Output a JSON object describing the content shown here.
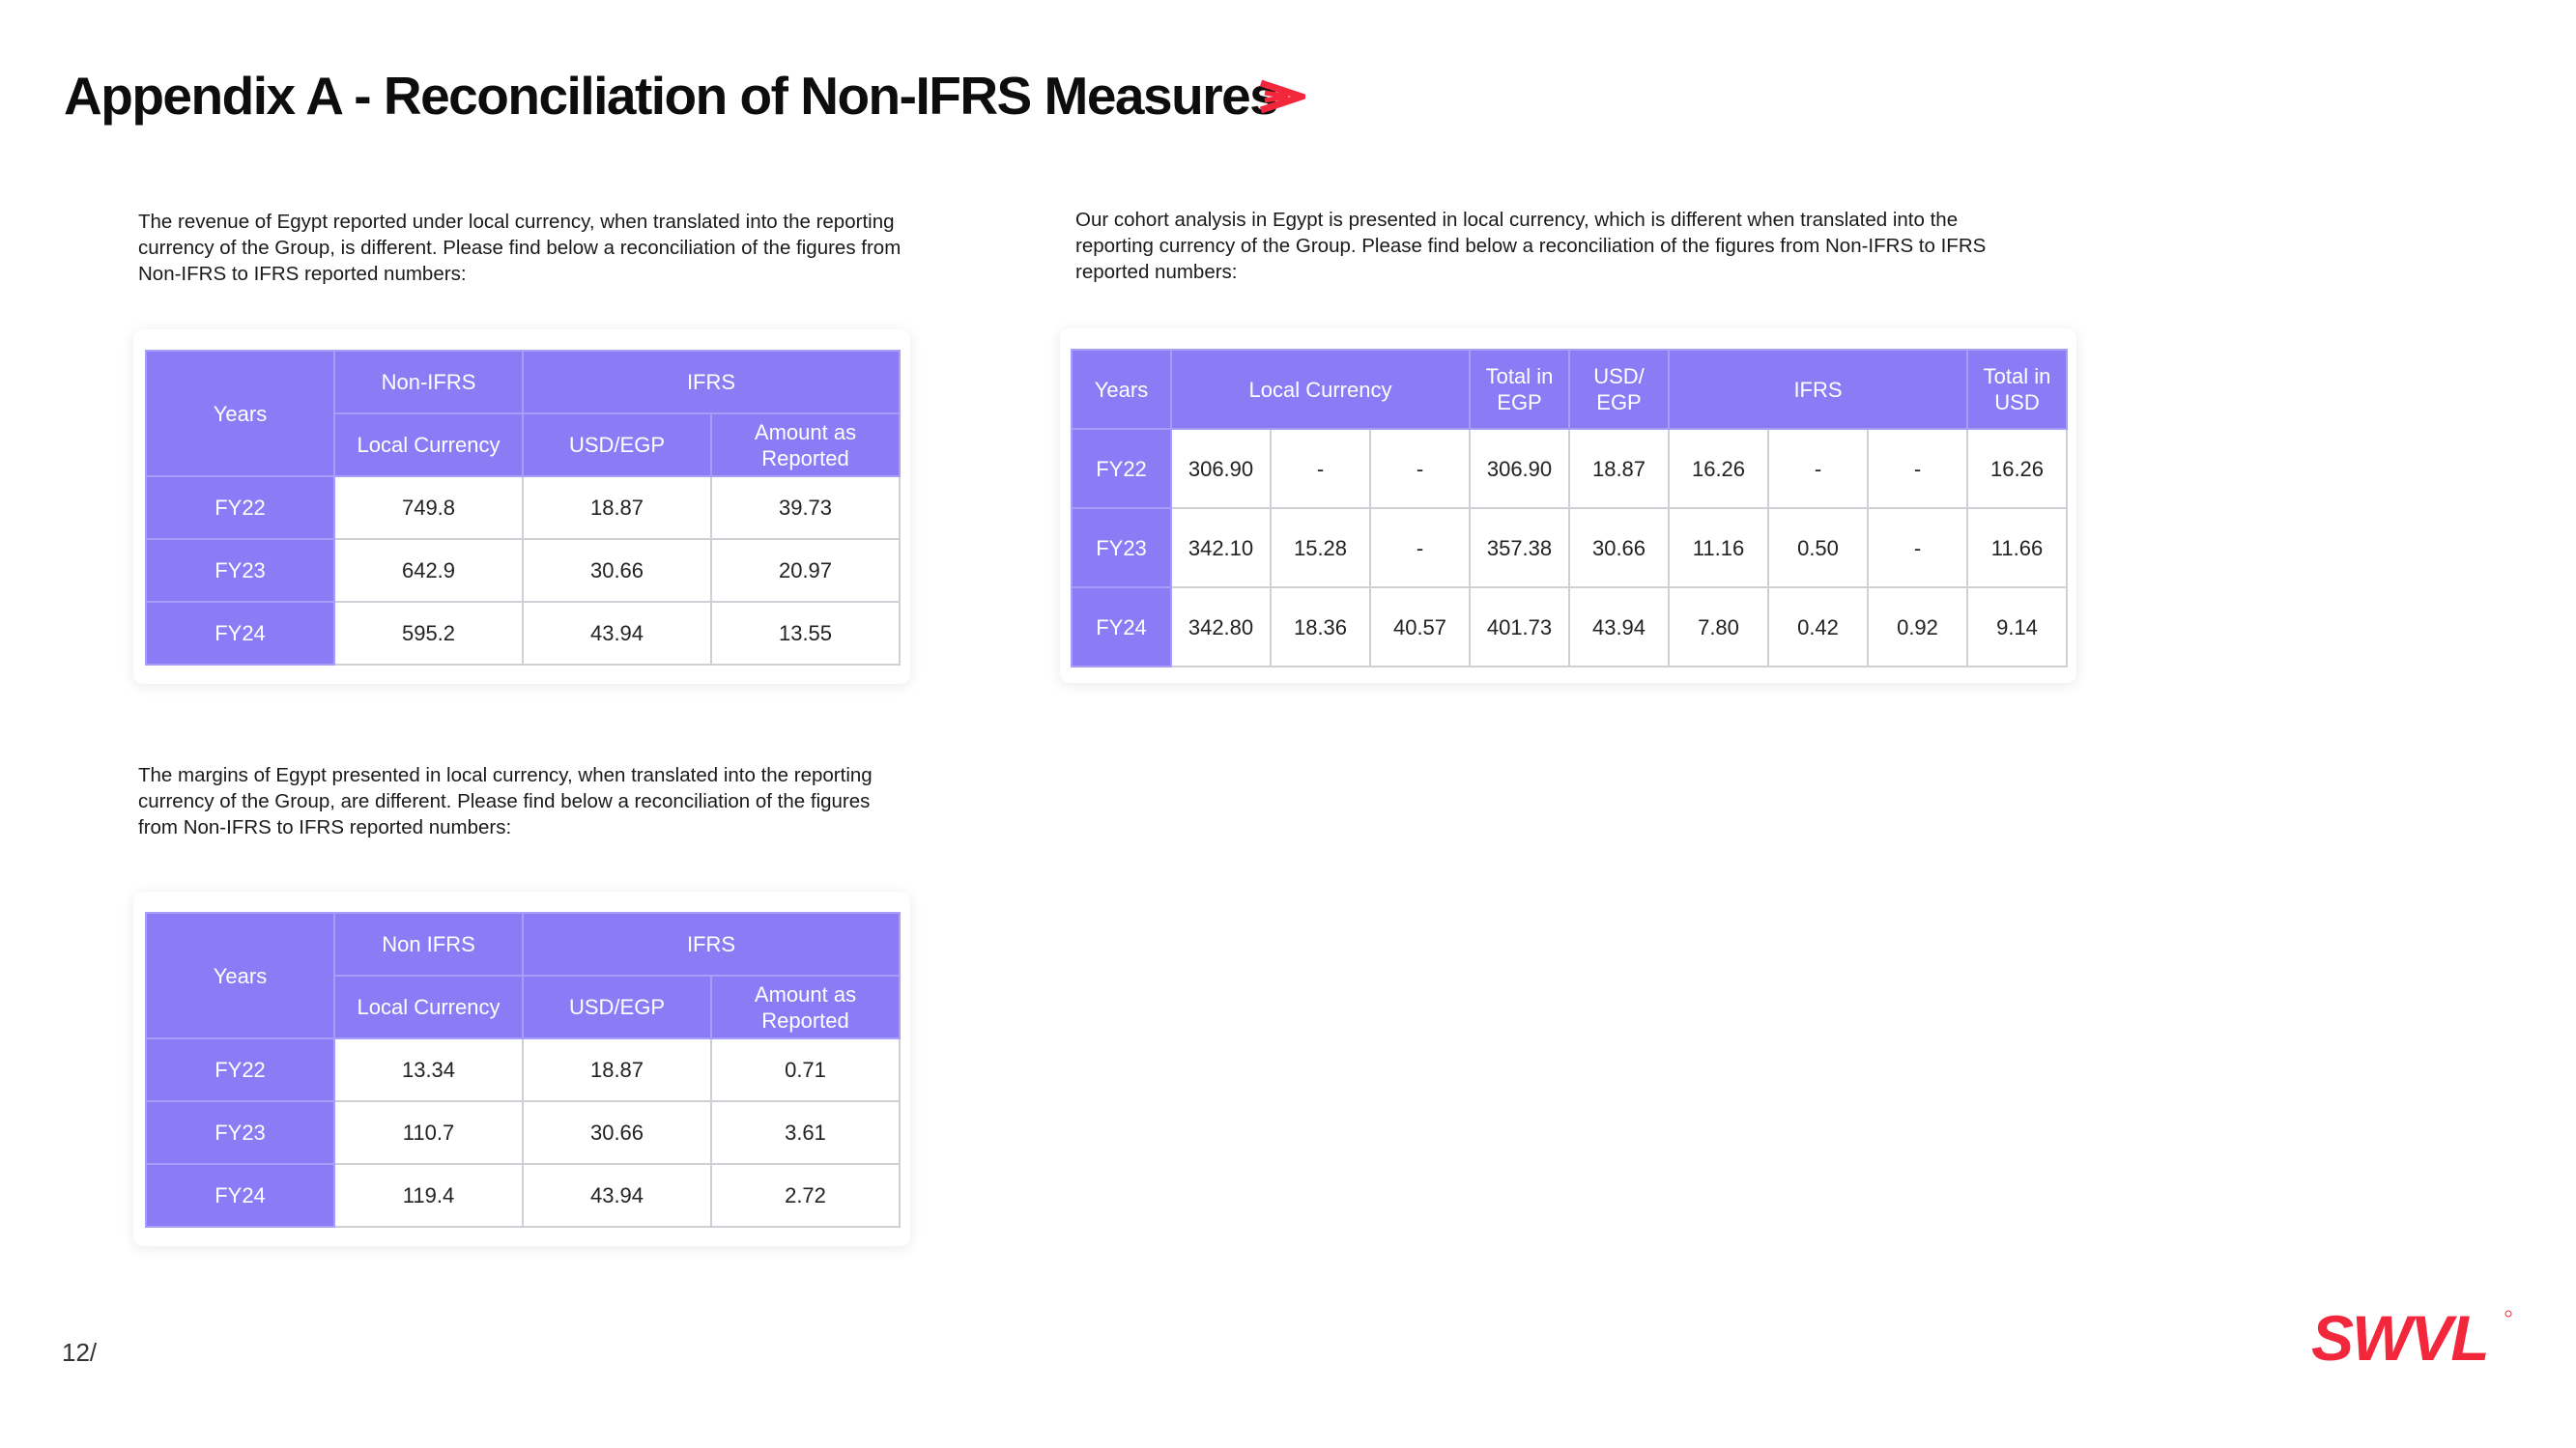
{
  "title": "Appendix A - Reconciliation of Non-IFRS Measures",
  "colors": {
    "accent": "#8B7CF6",
    "brand_red": "#F2273C"
  },
  "icons": {
    "title_icon": "double-chevron-right-icon",
    "logo": "swvl-logo"
  },
  "page_number": "12",
  "logo_text": "SWVL",
  "revenue": {
    "paragraph": "The revenue of Egypt reported under local currency, when translated into the reporting currency of the Group, is different. Please find below a reconciliation of the figures from Non-IFRS to IFRS reported numbers:",
    "headers": {
      "years": "Years",
      "non_ifrs": "Non-IFRS",
      "ifrs": "IFRS",
      "local_currency": "Local Currency",
      "usd_egp": "USD/EGP",
      "amount_reported": "Amount as Reported"
    },
    "rows": [
      {
        "year": "FY22",
        "local": "749.8",
        "rate": "18.87",
        "amount": "39.73"
      },
      {
        "year": "FY23",
        "local": "642.9",
        "rate": "30.66",
        "amount": "20.97"
      },
      {
        "year": "FY24",
        "local": "595.2",
        "rate": "43.94",
        "amount": "13.55"
      }
    ]
  },
  "margins": {
    "paragraph": "The margins of Egypt presented in local currency, when translated into the reporting currency of the Group, are different. Please find below a reconciliation of the figures from Non-IFRS to IFRS reported numbers:",
    "headers": {
      "years": "Years",
      "non_ifrs": "Non IFRS",
      "ifrs": "IFRS",
      "local_currency": "Local Currency",
      "usd_egp": "USD/EGP",
      "amount_reported": "Amount as Reported"
    },
    "rows": [
      {
        "year": "FY22",
        "local": "13.34",
        "rate": "18.87",
        "amount": "0.71"
      },
      {
        "year": "FY23",
        "local": "110.7",
        "rate": "30.66",
        "amount": "3.61"
      },
      {
        "year": "FY24",
        "local": "119.4",
        "rate": "43.94",
        "amount": "2.72"
      }
    ]
  },
  "cohort": {
    "paragraph": "Our cohort analysis in Egypt is presented in local currency, which is different when translated into the reporting currency of the Group. Please find below a reconciliation of the figures from Non-IFRS to IFRS reported numbers:",
    "headers": {
      "years": "Years",
      "local_currency": "Local Currency",
      "total_egp": "Total in EGP",
      "usd_egp": "USD/ EGP",
      "ifrs": "IFRS",
      "total_usd": "Total in USD"
    },
    "rows": [
      {
        "year": "FY22",
        "c": [
          "306.90",
          "-",
          "-",
          "306.90",
          "18.87",
          "16.26",
          "-",
          "-",
          "16.26"
        ]
      },
      {
        "year": "FY23",
        "c": [
          "342.10",
          "15.28",
          "-",
          "357.38",
          "30.66",
          "11.16",
          "0.50",
          "-",
          "11.66"
        ]
      },
      {
        "year": "FY24",
        "c": [
          "342.80",
          "18.36",
          "40.57",
          "401.73",
          "43.94",
          "7.80",
          "0.42",
          "0.92",
          "9.14"
        ]
      }
    ]
  }
}
